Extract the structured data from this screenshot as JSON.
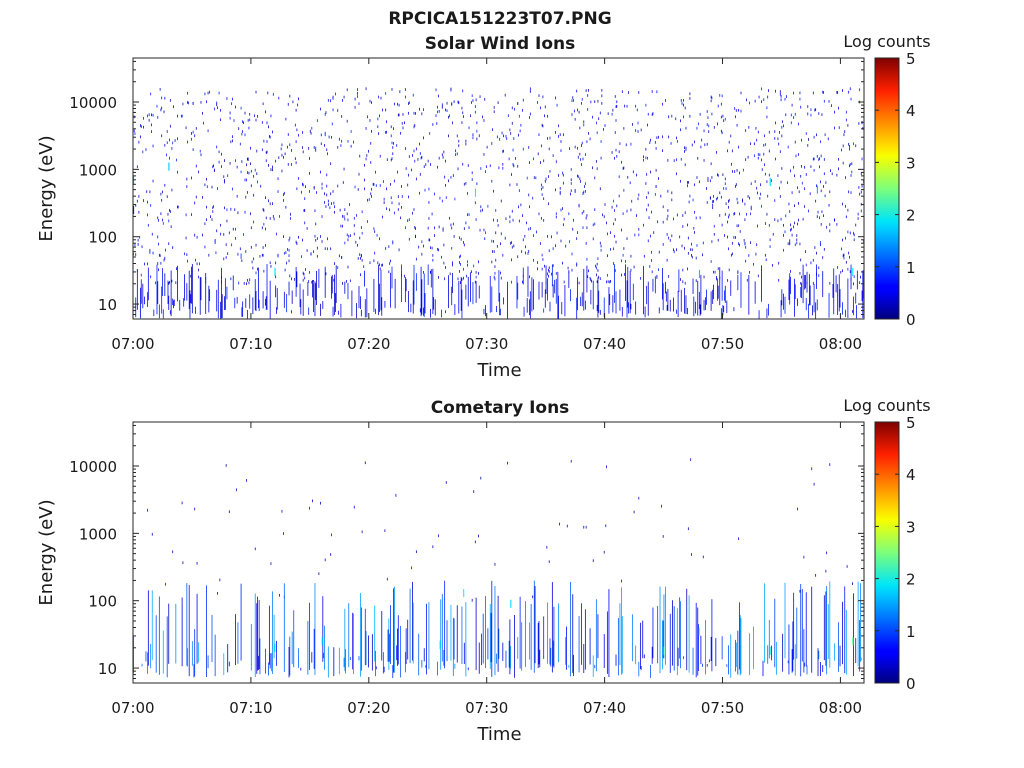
{
  "figure": {
    "title": "RPCICA151223T07.PNG"
  },
  "chart_data": [
    {
      "type": "heatmap",
      "title": "Solar Wind Ions",
      "xlabel": "Time",
      "ylabel": "Energy (eV)",
      "x_ticks": [
        "07:00",
        "07:10",
        "07:20",
        "07:30",
        "07:40",
        "07:50",
        "08:00"
      ],
      "xlim": [
        "07:00",
        "08:02"
      ],
      "y_ticks": [
        "10",
        "100",
        "1000",
        "10000"
      ],
      "y_scale": "log",
      "ylim": [
        6,
        45000
      ],
      "colorbar": {
        "label": "Log counts",
        "ticks": [
          "0",
          "1",
          "2",
          "3",
          "4",
          "5"
        ],
        "range": [
          0,
          5
        ],
        "colormap": "jet"
      },
      "description_of_pattern": "sparse scattered pixels mostly log counts 0-1 across 10-20000 eV, denser vertical streaks below 30 eV",
      "cells": [
        {
          "t": "07:00",
          "e": 700,
          "v": 1.5
        },
        {
          "t": "07:00",
          "e": 250,
          "v": 0.6
        },
        {
          "t": "07:03",
          "e": 1100,
          "v": 1.6
        },
        {
          "t": "07:12",
          "e": 30,
          "v": 1.7
        },
        {
          "t": "07:29",
          "e": 450,
          "v": 1.8
        },
        {
          "t": "07:48",
          "e": 28,
          "v": 1.6
        },
        {
          "t": "07:54",
          "e": 650,
          "v": 1.7
        },
        {
          "t": "07:58",
          "e": 500,
          "v": 1.5
        },
        {
          "t": "08:01",
          "e": 30,
          "v": 1.8
        }
      ]
    },
    {
      "type": "heatmap",
      "title": "Cometary Ions",
      "xlabel": "Time",
      "ylabel": "Energy (eV)",
      "x_ticks": [
        "07:00",
        "07:10",
        "07:20",
        "07:30",
        "07:40",
        "07:50",
        "08:00"
      ],
      "xlim": [
        "07:00",
        "08:02"
      ],
      "y_ticks": [
        "10",
        "100",
        "1000",
        "10000"
      ],
      "y_scale": "log",
      "ylim": [
        6,
        45000
      ],
      "colorbar": {
        "label": "Log counts",
        "ticks": [
          "0",
          "1",
          "2",
          "3",
          "4",
          "5"
        ],
        "range": [
          0,
          5
        ],
        "colormap": "jet"
      },
      "description_of_pattern": "sparse points at high energy, dense vertical streaks 10-100 eV reaching log counts ~2.5",
      "cells": [
        {
          "t": "07:12",
          "e": 20,
          "v": 2.0
        },
        {
          "t": "07:16",
          "e": 25,
          "v": 1.8
        },
        {
          "t": "07:26",
          "e": 22,
          "v": 1.8
        },
        {
          "t": "07:28",
          "e": 130,
          "v": 1.9
        },
        {
          "t": "07:32",
          "e": 90,
          "v": 1.7
        },
        {
          "t": "07:45",
          "e": 18,
          "v": 2.3
        },
        {
          "t": "07:48",
          "e": 35,
          "v": 2.5
        },
        {
          "t": "07:54",
          "e": 18,
          "v": 2.0
        },
        {
          "t": "08:01",
          "e": 25,
          "v": 2.4
        }
      ]
    }
  ]
}
